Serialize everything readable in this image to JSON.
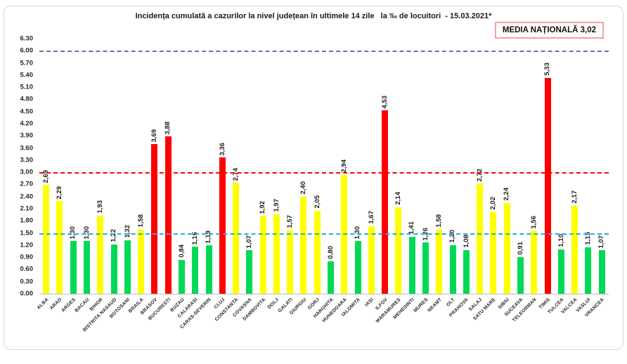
{
  "title": "Incidența cumulată a cazurilor la nivel județean în ultimele 14 zile   la ‰ de locuitori  - 15.03.2021*",
  "national_average_box": "MEDIA NAȚIONALĂ 3,02",
  "colors": {
    "bar_yellow": "#FFFF00",
    "bar_green": "#00D957",
    "bar_red": "#FF0000",
    "threshold_blue": "#2FA8DC",
    "threshold_red": "#FF0000",
    "threshold_purple": "#7E63A8",
    "media_box_border": "#F0A2A0",
    "axis_line": "#BCBCBC"
  },
  "chart_data": {
    "type": "bar",
    "title": "Incidența cumulată a cazurilor la nivel județean în ultimele 14 zile   la ‰ de locuitori  - 15.03.2021*",
    "xlabel": "",
    "ylabel": "",
    "ylim": [
      0,
      6.3
    ],
    "ytick_step": 0.3,
    "yticks": [
      "0.00",
      "0.30",
      "0.60",
      "0.90",
      "1.20",
      "1.50",
      "1.80",
      "2.10",
      "2.40",
      "2.70",
      "3.00",
      "3.30",
      "3.60",
      "3.90",
      "4.20",
      "4.50",
      "4.80",
      "5.10",
      "5.40",
      "5.70",
      "6.00",
      "6.30"
    ],
    "grid": false,
    "legend": "none",
    "categories": [
      "ALBA",
      "ARAD",
      "ARGES",
      "BACAU",
      "BIHOR",
      "BISTRITA NASAUD",
      "BOTOSANI",
      "BRAILA",
      "BRASOV",
      "BUCURESTI",
      "BUZAU",
      "CALARASI",
      "CARAS-SEVERIN",
      "CLUJ",
      "CONSTANTA",
      "COVASNA",
      "DAMBOVITA",
      "DOLJ",
      "GALATI",
      "GIURGIU",
      "GORJ",
      "HARGHITA",
      "HUNEDOARA",
      "IALOMITA",
      "IASI",
      "ILFOV",
      "MARAMURES",
      "MEHEDINTI",
      "MURES",
      "NEAMT",
      "OLT",
      "PRAHOVA",
      "SALAJ",
      "SATU MARE",
      "SIBIU",
      "SUCEAVA",
      "TELEORMAN",
      "TIMIS",
      "TULCEA",
      "VALCEA",
      "VASLUI",
      "VRANCEA"
    ],
    "values": [
      2.69,
      2.29,
      1.3,
      1.3,
      1.93,
      1.22,
      1.32,
      1.58,
      3.69,
      3.88,
      0.84,
      1.16,
      1.19,
      3.36,
      2.74,
      1.07,
      1.92,
      1.97,
      1.57,
      2.4,
      2.05,
      0.8,
      2.94,
      1.3,
      1.67,
      4.53,
      2.14,
      1.41,
      1.26,
      1.58,
      1.2,
      1.08,
      2.72,
      2.02,
      2.24,
      0.91,
      1.56,
      5.33,
      1.1,
      2.17,
      1.15,
      1.07
    ],
    "value_labels": [
      "2,69",
      "2,29",
      "1,30",
      "1,30",
      "1,93",
      "1,22",
      "1,32",
      "1,58",
      "3,69",
      "3,88",
      "0,84",
      "1,16",
      "1,19",
      "3,36",
      "2,74",
      "1,07",
      "1,92",
      "1,97",
      "1,57",
      "2,40",
      "2,05",
      "0,80",
      "2,94",
      "1,30",
      "1,67",
      "4,53",
      "2,14",
      "1,41",
      "1,26",
      "1,58",
      "1,20",
      "1,08",
      "2,72",
      "2,02",
      "2,24",
      "0,91",
      "1,56",
      "5,33",
      "1,10",
      "2,17",
      "1,15",
      "1,07"
    ],
    "levels": [
      "yellow",
      "yellow",
      "green",
      "green",
      "yellow",
      "green",
      "green",
      "yellow",
      "red",
      "red",
      "green",
      "green",
      "green",
      "red",
      "yellow",
      "green",
      "yellow",
      "yellow",
      "yellow",
      "yellow",
      "yellow",
      "green",
      "yellow",
      "green",
      "yellow",
      "red",
      "yellow",
      "green",
      "green",
      "yellow",
      "green",
      "green",
      "yellow",
      "yellow",
      "yellow",
      "green",
      "yellow",
      "red",
      "green",
      "yellow",
      "green",
      "green"
    ],
    "thresholds": [
      {
        "value": 6.0,
        "color_key": "threshold_purple"
      },
      {
        "value": 3.0,
        "color_key": "threshold_red"
      },
      {
        "value": 1.5,
        "color_key": "threshold_blue"
      }
    ]
  }
}
